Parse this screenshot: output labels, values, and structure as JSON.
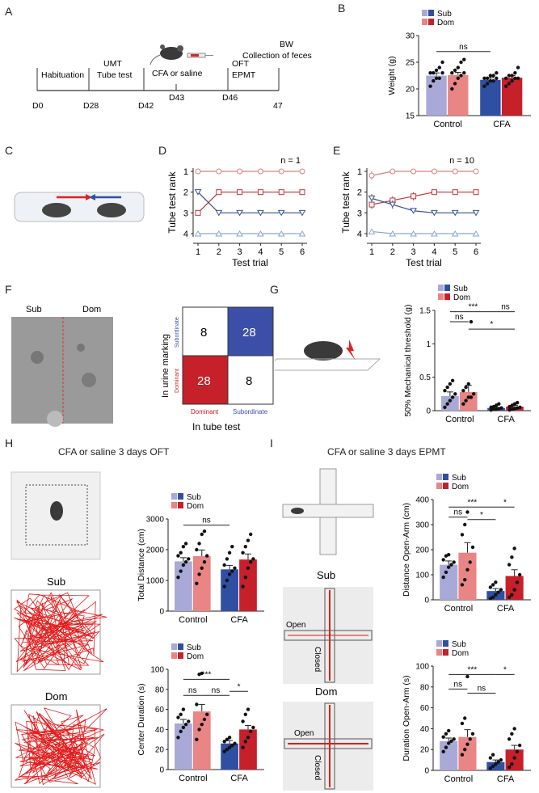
{
  "panel_letters": {
    "A": "A",
    "B": "B",
    "C": "C",
    "D": "D",
    "E": "E",
    "F": "F",
    "G": "G",
    "H": "H",
    "I": "I"
  },
  "timeline": {
    "days": [
      "D0",
      "D28",
      "D42",
      "D43",
      "D46",
      "47"
    ],
    "labels": {
      "habituation": "Habituation",
      "umt": "UMT",
      "tube": "Tube test",
      "cfa": "CFA or saline",
      "ofteval": "OFT",
      "epmt": "EPMT",
      "bw": "BW",
      "feces": "Collection of feces"
    }
  },
  "legend": {
    "sub": "Sub",
    "dom": "Dom"
  },
  "colors": {
    "sub_ctrl": "#a9a9d8",
    "dom_ctrl": "#e98585",
    "sub_cfa": "#2f4fa3",
    "dom_cfa": "#c6202a",
    "grid": "#e6e6e6"
  },
  "groups": [
    "Control",
    "CFA"
  ],
  "sig": {
    "ns": "ns",
    "one": "*",
    "three": "***"
  },
  "tube_test": {
    "d_title": "n = 1",
    "e_title": "n = 10",
    "xlabel": "Test trial",
    "ylabel": "Tube test rank"
  },
  "urine": {
    "sub_label": "Sub",
    "dom_label": "Dom",
    "matrix": [
      [
        "8",
        "28"
      ],
      [
        "28",
        "8"
      ]
    ],
    "row_labels": [
      "Subordinate",
      "Dominant"
    ],
    "col_labels": [
      "Dominant",
      "Subordinate"
    ],
    "ylabel": "In urine marking",
    "xlabel": "In tube test"
  },
  "sections": {
    "oft": "CFA or saline 3 days OFT",
    "epmt": "CFA or saline 3 days EPMT"
  },
  "trace_labels": {
    "sub": "Sub",
    "dom": "Dom",
    "open": "Open",
    "closed": "Closed"
  },
  "chart_data": [
    {
      "id": "B",
      "type": "bar",
      "title": "",
      "ylabel": "Weight (g)",
      "ylim": [
        15,
        30
      ],
      "yticks": [
        15,
        20,
        25,
        30
      ],
      "categories": [
        "Control",
        "CFA"
      ],
      "series": [
        {
          "name": "Sub",
          "values": [
            22.5,
            21.7
          ]
        },
        {
          "name": "Dom",
          "values": [
            22.6,
            22.1
          ]
        }
      ],
      "sem": [
        0.5,
        0.5,
        0.4,
        0.4
      ],
      "points": [
        [
          20.5,
          21.5,
          22,
          22,
          23,
          23,
          23,
          23.5,
          24,
          25
        ],
        [
          20,
          21,
          22,
          22.5,
          23,
          23,
          23.5,
          24,
          25,
          25.5
        ],
        [
          20.5,
          21,
          21.5,
          21.5,
          22,
          22,
          22,
          22.5,
          22.5,
          23
        ],
        [
          20.5,
          21,
          21.5,
          22,
          22,
          22,
          22.5,
          22.5,
          23,
          24
        ]
      ],
      "annotations": [
        {
          "text": "ns",
          "from": 0,
          "to": 2,
          "level": 27
        }
      ]
    },
    {
      "id": "D",
      "type": "line",
      "title": "n = 1",
      "xlabel": "Test trial",
      "ylabel": "Tube test rank",
      "x": [
        1,
        2,
        3,
        4,
        5,
        6
      ],
      "ylim": [
        1,
        4
      ],
      "yticks": [
        1,
        2,
        3,
        4
      ],
      "inverted": true,
      "series": [
        {
          "name": "rank1",
          "color": "#d9807f",
          "marker": "circle",
          "values": [
            1,
            1,
            1,
            1,
            1,
            1
          ]
        },
        {
          "name": "rank2",
          "color": "#c43232",
          "marker": "square",
          "values": [
            3,
            2,
            2,
            2,
            2,
            2
          ]
        },
        {
          "name": "rank3",
          "color": "#3a4f8f",
          "marker": "triangle-down",
          "values": [
            2,
            3,
            3,
            3,
            3,
            3
          ]
        },
        {
          "name": "rank4",
          "color": "#8aa6cc",
          "marker": "triangle-up",
          "values": [
            4,
            4,
            4,
            4,
            4,
            4
          ]
        }
      ]
    },
    {
      "id": "E",
      "type": "line",
      "title": "n = 10",
      "xlabel": "Test trial",
      "ylabel": "Tube test rank",
      "x": [
        1,
        2,
        3,
        4,
        5,
        6
      ],
      "ylim": [
        1,
        4
      ],
      "yticks": [
        1,
        2,
        3,
        4
      ],
      "inverted": true,
      "series": [
        {
          "name": "rank1",
          "color": "#d9807f",
          "marker": "circle",
          "values": [
            1.2,
            1.0,
            1.0,
            1.0,
            1.0,
            1.0
          ],
          "err": [
            0.2,
            0.05,
            0,
            0,
            0,
            0
          ]
        },
        {
          "name": "rank2",
          "color": "#c43232",
          "marker": "square",
          "values": [
            2.6,
            2.4,
            2.2,
            2.0,
            2.0,
            2.0
          ],
          "err": [
            0.2,
            0.2,
            0.2,
            0,
            0,
            0
          ]
        },
        {
          "name": "rank3",
          "color": "#3a4f8f",
          "marker": "triangle-down",
          "values": [
            2.3,
            2.6,
            2.9,
            3.0,
            3.0,
            3.0
          ],
          "err": [
            0.2,
            0.2,
            0.1,
            0,
            0,
            0
          ]
        },
        {
          "name": "rank4",
          "color": "#8aa6cc",
          "marker": "triangle-up",
          "values": [
            3.9,
            4.0,
            4.0,
            4.0,
            4.0,
            4.0
          ],
          "err": [
            0.05,
            0,
            0,
            0,
            0,
            0
          ]
        }
      ]
    },
    {
      "id": "G",
      "type": "bar",
      "ylabel": "50% Mechanical threshold (g)",
      "ylim": [
        0,
        1.5
      ],
      "yticks": [
        0.0,
        0.5,
        1.0,
        1.5
      ],
      "categories": [
        "Control",
        "CFA"
      ],
      "series": [
        {
          "name": "Sub",
          "values": [
            0.22,
            0.04
          ]
        },
        {
          "name": "Dom",
          "values": [
            0.28,
            0.06
          ]
        }
      ],
      "sem": [
        0.06,
        0.1,
        0.01,
        0.02
      ],
      "points": [
        [
          0.05,
          0.1,
          0.15,
          0.2,
          0.25,
          0.3,
          0.35,
          0.4,
          0.45
        ],
        [
          0.1,
          0.15,
          0.2,
          0.2,
          0.25,
          0.3,
          0.35,
          0.4,
          1.33
        ],
        [
          0.01,
          0.02,
          0.02,
          0.03,
          0.04,
          0.05,
          0.06,
          0.08,
          0.1
        ],
        [
          0.01,
          0.02,
          0.03,
          0.04,
          0.05,
          0.06,
          0.08,
          0.1,
          0.12
        ]
      ],
      "annotations": [
        {
          "text": "***",
          "from": 0,
          "to": 2,
          "level": 1.48
        },
        {
          "text": "ns",
          "from": 2,
          "to": 3,
          "level": 1.48
        },
        {
          "text": "ns",
          "from": 0,
          "to": 1,
          "level": 1.33
        },
        {
          "text": "*",
          "from": 1,
          "to": 3,
          "level": 1.22
        }
      ]
    },
    {
      "id": "H1",
      "type": "bar",
      "ylabel": "Total Distance (cm)",
      "ylim": [
        0,
        3000
      ],
      "yticks": [
        0,
        1000,
        2000,
        3000
      ],
      "categories": [
        "Control",
        "CFA"
      ],
      "series": [
        {
          "name": "Sub",
          "values": [
            1620,
            1360
          ]
        },
        {
          "name": "Dom",
          "values": [
            1790,
            1680
          ]
        }
      ],
      "sem": [
        120,
        200,
        130,
        180
      ],
      "points": [
        [
          1100,
          1300,
          1500,
          1600,
          1700,
          1800,
          1900,
          2100,
          2200
        ],
        [
          900,
          1200,
          1400,
          1600,
          1800,
          2000,
          2200,
          2500,
          2600
        ],
        [
          800,
          1000,
          1200,
          1300,
          1400,
          1500,
          1700,
          1900,
          2100
        ],
        [
          800,
          1100,
          1400,
          1600,
          1700,
          1900,
          2100,
          2300,
          2500
        ]
      ],
      "annotations": [
        {
          "text": "ns",
          "from": 0,
          "to": 2,
          "level": 2800
        }
      ]
    },
    {
      "id": "H2",
      "type": "bar",
      "ylabel": "Center Duration (s)",
      "ylim": [
        0,
        100
      ],
      "yticks": [
        0,
        20,
        40,
        60,
        80,
        100
      ],
      "categories": [
        "Control",
        "CFA"
      ],
      "series": [
        {
          "name": "Sub",
          "values": [
            46,
            26
          ]
        },
        {
          "name": "Dom",
          "values": [
            58,
            40
          ]
        }
      ],
      "sem": [
        4,
        7,
        3,
        4
      ],
      "points": [
        [
          32,
          38,
          42,
          45,
          48,
          52,
          55,
          60
        ],
        [
          30,
          40,
          45,
          50,
          55,
          65,
          95,
          96
        ],
        [
          18,
          20,
          22,
          24,
          26,
          28,
          30,
          32
        ],
        [
          22,
          28,
          32,
          38,
          42,
          48,
          55,
          60
        ]
      ],
      "annotations": [
        {
          "text": "***",
          "from": 0,
          "to": 2,
          "level": 90
        },
        {
          "text": "*",
          "from": 2,
          "to": 3,
          "level": 78
        },
        {
          "text": "ns",
          "from": 0,
          "to": 1,
          "level": 74
        },
        {
          "text": "ns",
          "from": 1,
          "to": 2,
          "level": 74
        }
      ]
    },
    {
      "id": "I1",
      "type": "bar",
      "ylabel": "Distance Open-Arm (cm)",
      "ylim": [
        0,
        400
      ],
      "yticks": [
        0,
        100,
        200,
        300,
        400
      ],
      "categories": [
        "Control",
        "CFA"
      ],
      "series": [
        {
          "name": "Sub",
          "values": [
            140,
            35
          ]
        },
        {
          "name": "Dom",
          "values": [
            188,
            95
          ]
        }
      ],
      "sem": [
        15,
        40,
        10,
        25
      ],
      "points": [
        [
          90,
          110,
          130,
          140,
          150,
          160,
          175,
          180
        ],
        [
          60,
          80,
          120,
          150,
          210,
          260,
          300,
          350
        ],
        [
          5,
          10,
          20,
          30,
          40,
          50,
          60,
          70
        ],
        [
          10,
          20,
          40,
          70,
          100,
          140,
          170,
          205
        ]
      ],
      "annotations": [
        {
          "text": "***",
          "from": 0,
          "to": 2,
          "level": 370
        },
        {
          "text": "*",
          "from": 2,
          "to": 3,
          "level": 370
        },
        {
          "text": "ns",
          "from": 0,
          "to": 1,
          "level": 330
        },
        {
          "text": "*",
          "from": 1,
          "to": 2,
          "level": 320
        }
      ]
    },
    {
      "id": "I2",
      "type": "bar",
      "ylabel": "Duration Open-Arm (s)",
      "ylim": [
        0,
        100
      ],
      "yticks": [
        0,
        20,
        40,
        60,
        80,
        100
      ],
      "categories": [
        "Control",
        "CFA"
      ],
      "series": [
        {
          "name": "Sub",
          "values": [
            28,
            8
          ]
        },
        {
          "name": "Dom",
          "values": [
            32,
            20
          ]
        }
      ],
      "sem": [
        3,
        7,
        2,
        4
      ],
      "points": [
        [
          18,
          22,
          26,
          28,
          30,
          32,
          35,
          38
        ],
        [
          15,
          20,
          25,
          30,
          35,
          45,
          50,
          90
        ],
        [
          2,
          4,
          6,
          8,
          10,
          12,
          15
        ],
        [
          3,
          6,
          12,
          18,
          24,
          30,
          35,
          40
        ]
      ],
      "annotations": [
        {
          "text": "***",
          "from": 0,
          "to": 2,
          "level": 92
        },
        {
          "text": "*",
          "from": 2,
          "to": 3,
          "level": 92
        },
        {
          "text": "ns",
          "from": 0,
          "to": 1,
          "level": 78
        },
        {
          "text": "ns",
          "from": 1,
          "to": 2,
          "level": 74
        }
      ]
    }
  ]
}
